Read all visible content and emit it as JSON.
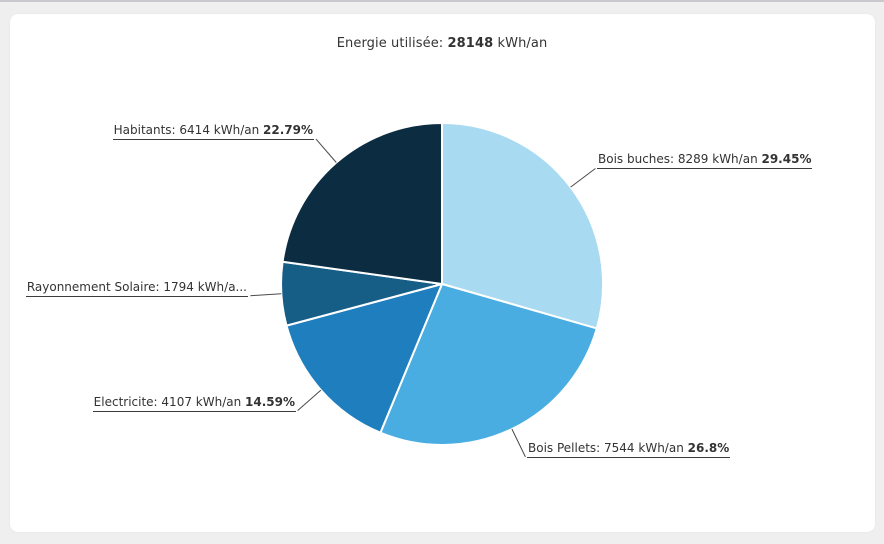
{
  "page": {
    "background_color": "#efefef",
    "card_background_color": "#ffffff",
    "top_border_color": "#c9c9d0"
  },
  "title": {
    "prefix": "Energie utilisée:",
    "value": "28148",
    "suffix": "kWh/an"
  },
  "chart_data": {
    "type": "pie",
    "title": "Energie utilisée: 28148 kWh/an",
    "total": 28148,
    "unit": "kWh/an",
    "start_angle": "top",
    "direction": "clockwise",
    "legend": "none",
    "labels_style": "outside with leader lines, underlined, percent in bold",
    "slices": [
      {
        "name": "Bois buches",
        "value": 8289,
        "percent_label": "29.45%",
        "color": "#a8daf2",
        "label_text": "Bois buches: 8289 kWh/an ",
        "label_pct": "29.45%"
      },
      {
        "name": "Bois Pellets",
        "value": 7544,
        "percent_label": "26.8%",
        "color": "#49ade2",
        "label_text": "Bois Pellets: 7544 kWh/an ",
        "label_pct": "26.8%"
      },
      {
        "name": "Electricite",
        "value": 4107,
        "percent_label": "14.59%",
        "color": "#1e7ebe",
        "label_text": "Electricite: 4107 kWh/an ",
        "label_pct": "14.59%"
      },
      {
        "name": "Rayonnement Solaire",
        "value": 1794,
        "percent_label": "",
        "color": "#175e87",
        "label_text": "Rayonnement Solaire: 1794 kWh/a...",
        "label_pct": ""
      },
      {
        "name": "Habitants",
        "value": 6414,
        "percent_label": "22.79%",
        "color": "#0b2c41",
        "label_text": "Habitants: 6414 kWh/an ",
        "label_pct": "22.79%"
      }
    ],
    "leader_line_color": "#4a4a4a",
    "slice_stroke_color": "#ffffff"
  }
}
